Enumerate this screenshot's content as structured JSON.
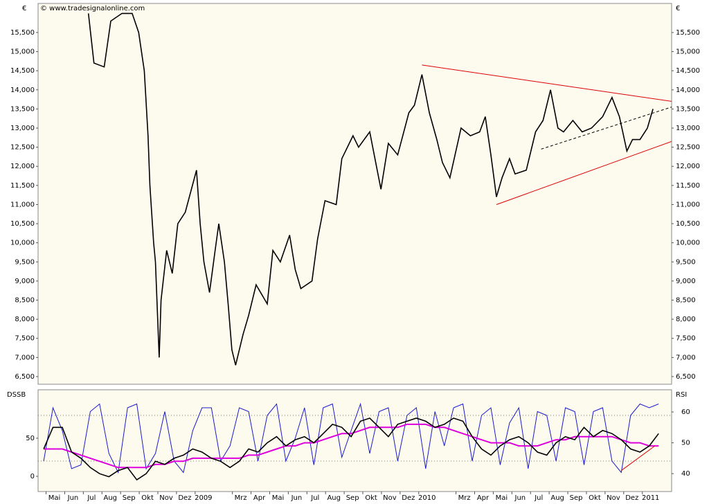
{
  "chart_data": [
    {
      "type": "line",
      "source": "© www.tradesignalonline.com",
      "y_unit": "€",
      "color": "#000000",
      "xlim": [
        -0.8,
        33.2
      ],
      "ylim": [
        6300,
        16260
      ],
      "yticks": [
        {
          "value": 6500,
          "label": "6,500"
        },
        {
          "value": 7000,
          "label": "7,000"
        },
        {
          "value": 7500,
          "label": "7,500"
        },
        {
          "value": 8000,
          "label": "8,000"
        },
        {
          "value": 8500,
          "label": "8,500"
        },
        {
          "value": 9000,
          "label": "9,000"
        },
        {
          "value": 9500,
          "label": "9,500"
        },
        {
          "value": 10000,
          "label": "10,000"
        },
        {
          "value": 10500,
          "label": "10,500"
        },
        {
          "value": 11000,
          "label": "11,000"
        },
        {
          "value": 11500,
          "label": "11,500"
        },
        {
          "value": 12000,
          "label": "12,000"
        },
        {
          "value": 12500,
          "label": "12,500"
        },
        {
          "value": 13000,
          "label": "13,000"
        },
        {
          "value": 13500,
          "label": "13,500"
        },
        {
          "value": 14000,
          "label": "14,000"
        },
        {
          "value": 14500,
          "label": "14,500"
        },
        {
          "value": 15000,
          "label": "15,000"
        },
        {
          "value": 15500,
          "label": "15,500"
        }
      ],
      "x": [
        1.9,
        2.2,
        2.75,
        3.1,
        3.7,
        4.25,
        4.6,
        4.9,
        5.1,
        5.2,
        5.4,
        5.5,
        5.7,
        5.8,
        6.1,
        6.4,
        6.7,
        7.1,
        7.7,
        7.9,
        8.1,
        8.4,
        8.7,
        8.9,
        9.2,
        9.4,
        9.6,
        9.8,
        10.2,
        10.5,
        10.9,
        11.5,
        11.8,
        12.2,
        12.7,
        13.0,
        13.3,
        13.9,
        14.2,
        14.6,
        15.2,
        15.5,
        16.1,
        16.4,
        17.0,
        17.4,
        17.6,
        18.0,
        18.5,
        19.1,
        19.4,
        19.8,
        20.2,
        20.6,
        20.9,
        21.3,
        21.9,
        22.4,
        22.9,
        23.2,
        23.5,
        23.8,
        24.1,
        24.5,
        24.8,
        25.4,
        25.9,
        26.3,
        26.7,
        27.1,
        27.4,
        27.9,
        28.4,
        28.9,
        29.5,
        30.0,
        30.4,
        30.8,
        31.1,
        31.5,
        31.9,
        32.2
      ],
      "values": [
        16000,
        14700,
        14600,
        15800,
        16000,
        16000,
        15500,
        14500,
        12800,
        11500,
        10000,
        9500,
        7000,
        8500,
        9800,
        9200,
        10500,
        10800,
        11900,
        10500,
        9500,
        8700,
        9800,
        10500,
        9500,
        8400,
        7200,
        6800,
        7600,
        8100,
        8900,
        8400,
        9800,
        9500,
        10200,
        9300,
        8800,
        9000,
        10100,
        11100,
        11000,
        12200,
        12800,
        12500,
        12900,
        11900,
        11400,
        12600,
        12300,
        13400,
        13600,
        14400,
        13400,
        12700,
        12100,
        11700,
        13000,
        12800,
        12900,
        13300,
        12300,
        11200,
        11700,
        12200,
        11800,
        11900,
        12900,
        13200,
        14000,
        13000,
        12900,
        13200,
        12900,
        13000,
        13300,
        13800,
        13300,
        12400,
        12700,
        12700,
        13000,
        13500
      ],
      "trendlines": [
        {
          "color": "#dd0000",
          "dashed": false,
          "x": [
            19.8,
            33.2
          ],
          "values": [
            14650,
            13700
          ]
        },
        {
          "color": "#dd0000",
          "dashed": false,
          "x": [
            23.8,
            33.2
          ],
          "values": [
            11000,
            12650
          ]
        },
        {
          "color": "#000000",
          "dashed": true,
          "x": [
            26.2,
            33.2
          ],
          "values": [
            12450,
            13550
          ]
        }
      ]
    },
    {
      "type": "line",
      "y_label": "DSSB",
      "y2_label": "RSI",
      "xlim": [
        -0.8,
        33.2
      ],
      "ylim": [
        -20,
        113.6
      ],
      "y2lim": [
        34.2,
        67.2
      ],
      "yticks": [
        0,
        50
      ],
      "y2ticks": [
        40,
        50,
        60
      ],
      "levels": [
        20,
        80
      ],
      "xticks": [
        {
          "value": 0,
          "label": "Mai"
        },
        {
          "value": 1,
          "label": "Jun"
        },
        {
          "value": 2,
          "label": "Jul"
        },
        {
          "value": 3,
          "label": "Aug"
        },
        {
          "value": 4,
          "label": "Sep"
        },
        {
          "value": 5,
          "label": "Okt"
        },
        {
          "value": 6,
          "label": "Nov"
        },
        {
          "value": 7,
          "label": "Dez"
        },
        {
          "value": 8,
          "label": "2009"
        },
        {
          "value": 10,
          "label": "Mrz"
        },
        {
          "value": 11,
          "label": "Apr"
        },
        {
          "value": 12,
          "label": "Mai"
        },
        {
          "value": 13,
          "label": "Jun"
        },
        {
          "value": 14,
          "label": "Jul"
        },
        {
          "value": 15,
          "label": "Aug"
        },
        {
          "value": 16,
          "label": "Sep"
        },
        {
          "value": 17,
          "label": "Okt"
        },
        {
          "value": 18,
          "label": "Nov"
        },
        {
          "value": 19,
          "label": "Dez"
        },
        {
          "value": 20,
          "label": "2010"
        },
        {
          "value": 22,
          "label": "Mrz"
        },
        {
          "value": 23,
          "label": "Apr"
        },
        {
          "value": 24,
          "label": "Mai"
        },
        {
          "value": 25,
          "label": "Jun"
        },
        {
          "value": 26,
          "label": "Jul"
        },
        {
          "value": 27,
          "label": "Aug"
        },
        {
          "value": 28,
          "label": "Sep"
        },
        {
          "value": 29,
          "label": "Okt"
        },
        {
          "value": 30,
          "label": "Nov"
        },
        {
          "value": 31,
          "label": "Dez"
        },
        {
          "value": 32,
          "label": "2011"
        }
      ],
      "x": [
        -0.5,
        0,
        0.5,
        1,
        1.5,
        2,
        2.5,
        3,
        3.5,
        4,
        4.5,
        5,
        5.5,
        6,
        6.5,
        7,
        7.5,
        8,
        8.5,
        9,
        9.5,
        10,
        10.5,
        11,
        11.5,
        12,
        12.5,
        13,
        13.5,
        14,
        14.5,
        15,
        15.5,
        16,
        16.5,
        17,
        17.5,
        18,
        18.5,
        19,
        19.5,
        20,
        20.5,
        21,
        21.5,
        22,
        22.5,
        23,
        23.5,
        24,
        24.5,
        25,
        25.5,
        26,
        26.5,
        27,
        27.5,
        28,
        28.5,
        29,
        29.5,
        30,
        30.5,
        31,
        31.5,
        32,
        32.5
      ],
      "series": [
        {
          "color": "#1a1acc",
          "axis": "y",
          "values": [
            20,
            90,
            60,
            10,
            15,
            85,
            95,
            30,
            5,
            90,
            95,
            10,
            30,
            85,
            20,
            5,
            60,
            90,
            90,
            20,
            40,
            90,
            85,
            20,
            80,
            95,
            20,
            50,
            90,
            15,
            90,
            95,
            25,
            60,
            95,
            30,
            85,
            90,
            20,
            80,
            90,
            10,
            85,
            40,
            90,
            95,
            20,
            80,
            90,
            15,
            70,
            90,
            10,
            85,
            80,
            20,
            90,
            85,
            15,
            85,
            90,
            20,
            5,
            80,
            95,
            90,
            95
          ]
        },
        {
          "color": "#dd00dd",
          "axis": "y2",
          "width": 2,
          "values": [
            48,
            48,
            48,
            47,
            46,
            45,
            44,
            43,
            42,
            42,
            42,
            42,
            43,
            43,
            44,
            44,
            45,
            45,
            45,
            45,
            45,
            45,
            46,
            46,
            47,
            48,
            49,
            49,
            50,
            50,
            51,
            52,
            53,
            53,
            54,
            55,
            55,
            55,
            55,
            56,
            56,
            56,
            55,
            55,
            54,
            53,
            52,
            51,
            50,
            50,
            50,
            49,
            49,
            49,
            50,
            51,
            51,
            52,
            52,
            52,
            52,
            52,
            51,
            50,
            50,
            49,
            49
          ]
        },
        {
          "color": "#000000",
          "axis": "y2",
          "width": 1.6,
          "values": [
            48,
            55,
            55,
            47,
            45,
            42,
            40,
            39,
            41,
            42,
            38,
            40,
            44,
            43,
            45,
            46,
            48,
            47,
            45,
            44,
            42,
            44,
            48,
            47,
            50,
            52,
            49,
            51,
            52,
            50,
            53,
            56,
            55,
            52,
            57,
            58,
            55,
            52,
            56,
            57,
            58,
            57,
            55,
            56,
            58,
            57,
            52,
            48,
            46,
            49,
            51,
            52,
            50,
            47,
            46,
            50,
            52,
            51,
            55,
            52,
            54,
            53,
            51,
            48,
            47,
            49,
            53
          ]
        }
      ],
      "trendlines": [
        {
          "color": "#dd0000",
          "dashed": false,
          "axis": "y2",
          "x": [
            30.5,
            32.3
          ],
          "values": [
            41,
            49
          ]
        }
      ]
    }
  ]
}
